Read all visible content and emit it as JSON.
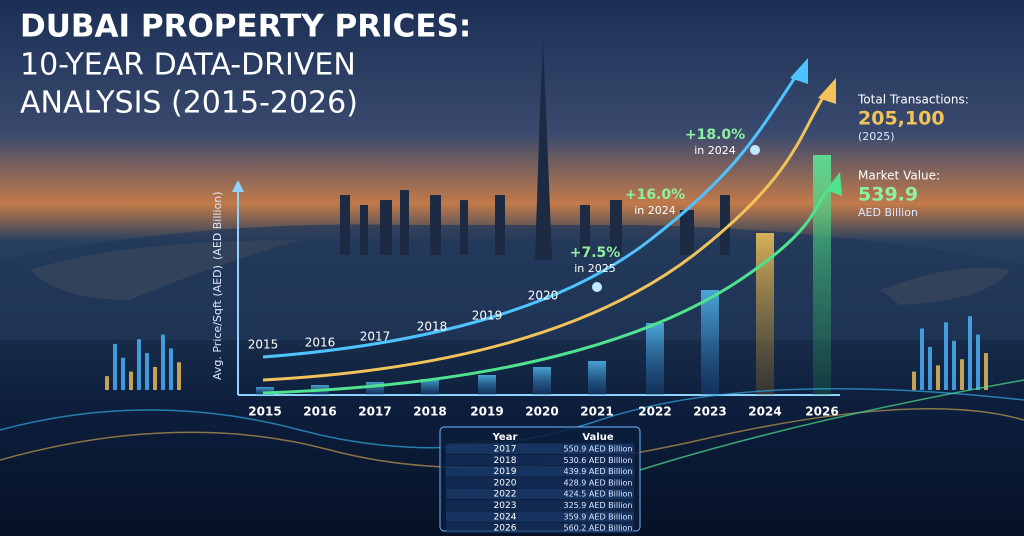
{
  "title": [
    "DUBAI PROPERTY PRICES:",
    "10-YEAR DATA-DRIVEN",
    "ANALYSIS (2015-2026)"
  ],
  "chart": {
    "y_label": "Avg. Price/Sqft (AED)",
    "y2_label": "(AED Billion)",
    "x_labels": [
      "2015",
      "2016",
      "2017",
      "2018",
      "2019",
      "2020",
      "2021",
      "2022",
      "2023",
      "2024",
      "2026"
    ],
    "curve_labels": [
      "2015",
      "2016",
      "2017",
      "2018",
      "2019",
      "2020"
    ],
    "annotations": [
      {
        "change": "+18.0%",
        "note": "in 2024"
      },
      {
        "change": "+16.0%",
        "note": "in 2024"
      },
      {
        "change": "+7.5%",
        "note": "in 2025"
      }
    ]
  },
  "stats": [
    {
      "label": "Total Transactions:",
      "value": "205,100",
      "note": "(2025)"
    },
    {
      "label": "Market Value:",
      "value": "539.9",
      "note": "AED Billion"
    }
  ],
  "table": {
    "header": [
      "Year",
      "Value"
    ],
    "rows": [
      [
        "2017",
        "550.9 AED Billion"
      ],
      [
        "2018",
        "530.6 AED Billion"
      ],
      [
        "2019",
        "439.9 AED Billion"
      ],
      [
        "2020",
        "428.9 AED Billion"
      ],
      [
        "2022",
        "424.5 AED Billion"
      ],
      [
        "2023",
        "325.9 AED Billion"
      ],
      [
        "2024",
        "359.9 AED Billion"
      ],
      [
        "2026",
        "560.2 AED Billion"
      ]
    ]
  }
}
